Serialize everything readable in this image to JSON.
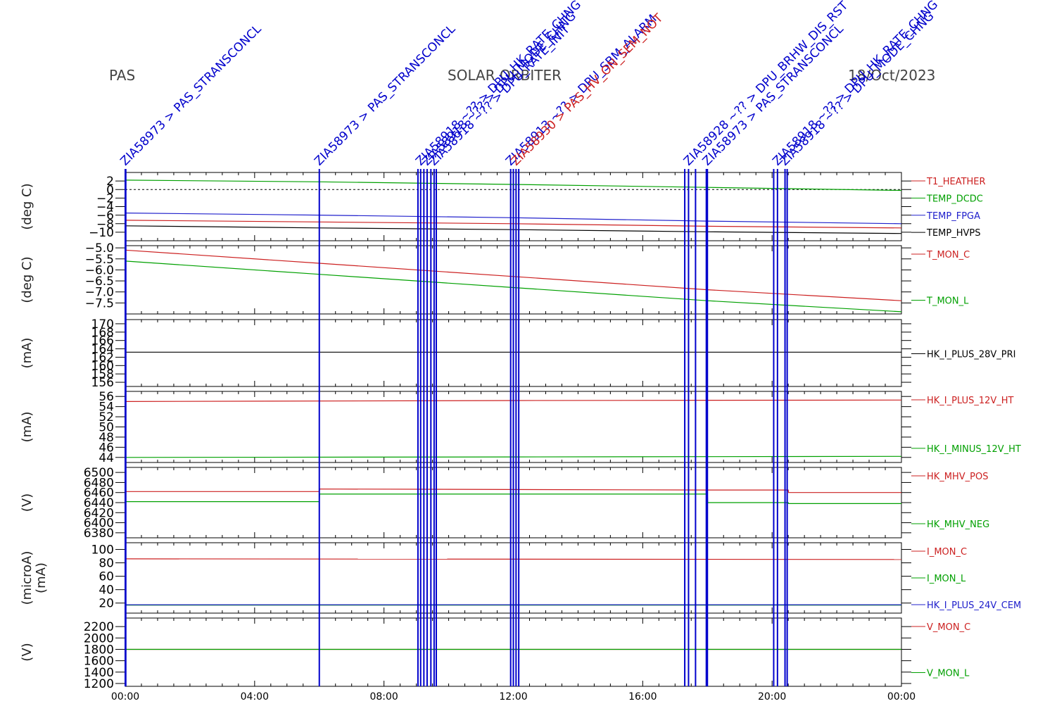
{
  "header": {
    "instrument": "PAS",
    "mission": "SOLAR ORBITER",
    "date": "18/Oct/2023"
  },
  "colors": {
    "red": "#cc2020",
    "green": "#00a000",
    "blue": "#2020cc",
    "black": "#000000",
    "event": "#0000cc"
  },
  "events": {
    "lines": [
      "00:00",
      "00:01",
      "06:00",
      "09:03",
      "09:08",
      "09:14",
      "09:20",
      "09:27",
      "09:33",
      "09:37",
      "11:55",
      "12:00",
      "12:05",
      "12:10",
      "17:18",
      "17:25",
      "17:38",
      "17:58",
      "18:00",
      "20:03",
      "20:10",
      "20:24",
      "20:28"
    ],
    "labels": [
      {
        "time": "00:00",
        "text": "ZIA58973 > PAS_STRANSCONCL",
        "color": "#0000cc"
      },
      {
        "time": "06:00",
        "text": "ZIA58973 > PAS_STRANSCONCL",
        "color": "#0000cc"
      },
      {
        "time": "09:08",
        "text": "ZIA58918 ~?? > DPU_HK_RATE_CHNG",
        "color": "#0000cc"
      },
      {
        "time": "09:20",
        "text": "ZIA58918 ~?? > DPU_MODE_CHNG",
        "color": "#0000cc"
      },
      {
        "time": "09:33",
        "text": "ZIA58918 ~?? > DPU_RATE_INIT",
        "color": "#0000cc"
      },
      {
        "time": "11:55",
        "text": "ZIA58913 ~?? > DPU_SBM_ALARM",
        "color": "#0000cc"
      },
      {
        "time": "12:05",
        "text": "ZIA58930 > PAS_HV_ON_SEM_NOT",
        "color": "#cc2020"
      },
      {
        "time": "17:25",
        "text": "ZIA58928 ~?? > DPU_BRHW_DIS_RST",
        "color": "#0000cc"
      },
      {
        "time": "18:00",
        "text": "ZIA58973 > PAS_STRANSCONCL",
        "color": "#0000cc"
      },
      {
        "time": "20:10",
        "text": "ZIA58918 ~?? > DPU_HK_RATE_CHNG",
        "color": "#0000cc"
      },
      {
        "time": "20:24",
        "text": "ZIA58918 ~?? > DPU_MODE_CHNG",
        "color": "#0000cc"
      }
    ]
  },
  "chart_data": {
    "type": "line",
    "x_axis": {
      "range": [
        "00:00",
        "24:00"
      ],
      "tick_labels": [
        "00:00",
        "04:00",
        "08:00",
        "12:00",
        "16:00",
        "20:00",
        "00:00"
      ]
    },
    "panels": [
      {
        "ylabel": "(deg C)",
        "ylim": [
          -12,
          4
        ],
        "ticks": [
          "2",
          "0",
          "-2",
          "-4",
          "-6",
          "-8",
          "-10"
        ],
        "zero_line": true,
        "series": [
          {
            "name": "T1_HEATHER",
            "color": "#cc2020",
            "x": [
              0,
              24
            ],
            "y": [
              null,
              null
            ]
          },
          {
            "name": "TEMP_DCDC",
            "color": "#00a000",
            "x": [
              0,
              6,
              12,
              18,
              24
            ],
            "y": [
              2.2,
              1.8,
              1.2,
              0.5,
              -0.2
            ]
          },
          {
            "name": "TEMP_FPGA",
            "color": "#2020cc",
            "x": [
              0,
              6,
              12,
              18,
              24
            ],
            "y": [
              -5.5,
              -6.0,
              -6.6,
              -7.4,
              -8.0
            ]
          },
          {
            "name": "TEMP_HVPS",
            "color": "#000000",
            "x": [
              0,
              6,
              12,
              18,
              24
            ],
            "y": [
              -8.5,
              -9.0,
              -9.4,
              -9.9,
              -10.3
            ]
          },
          {
            "name": "",
            "color": "#cc2020",
            "x": [
              0,
              6,
              12,
              18,
              24
            ],
            "y": [
              -7.2,
              -7.6,
              -8.0,
              -8.6,
              -9.0
            ]
          }
        ]
      },
      {
        "ylabel": "(deg C)",
        "ylim": [
          -8,
          -4.9
        ],
        "ticks": [
          "-5.0",
          "-5.5",
          "-6.0",
          "-6.5",
          "-7.0",
          "-7.5"
        ],
        "series": [
          {
            "name": "T_MON_C",
            "color": "#cc2020",
            "x": [
              0,
              6,
              12,
              18,
              24
            ],
            "y": [
              -5.1,
              -5.7,
              -6.3,
              -6.9,
              -7.4
            ]
          },
          {
            "name": "T_MON_L",
            "color": "#00a000",
            "x": [
              0,
              6,
              12,
              18,
              24
            ],
            "y": [
              -5.6,
              -6.2,
              -6.8,
              -7.4,
              -7.9
            ]
          }
        ]
      },
      {
        "ylabel": "(mA)",
        "ylim": [
          155,
          171
        ],
        "ticks": [
          "170",
          "168",
          "166",
          "164",
          "162",
          "160",
          "158",
          "156"
        ],
        "series": [
          {
            "name": "HK_I_PLUS_28V_PRI",
            "color": "#000000",
            "x": [
              0,
              12,
              24
            ],
            "y": [
              163.2,
              163.2,
              163.2
            ]
          }
        ]
      },
      {
        "ylabel": "(mA)",
        "ylim": [
          43,
          57
        ],
        "ticks": [
          "56",
          "54",
          "52",
          "50",
          "48",
          "46",
          "44"
        ],
        "series": [
          {
            "name": "HK_I_PLUS_12V_HT",
            "color": "#cc2020",
            "x": [
              0,
              12,
              24
            ],
            "y": [
              55.0,
              55.2,
              55.3
            ]
          },
          {
            "name": "HK_I_MINUS_12V_HT",
            "color": "#00a000",
            "x": [
              0,
              12,
              24
            ],
            "y": [
              44.0,
              44.1,
              44.2
            ]
          }
        ]
      },
      {
        "ylabel": "(V)",
        "ylim": [
          6370,
          6510
        ],
        "ticks": [
          "6500",
          "6480",
          "6460",
          "6440",
          "6420",
          "6400",
          "6380"
        ],
        "series": [
          {
            "name": "HK_MHV_POS",
            "color": "#cc2020",
            "x": [
              0,
              6,
              6.01,
              18,
              20.5,
              20.51,
              24
            ],
            "y": [
              6462,
              6462,
              6467,
              6465,
              6465,
              6460,
              6460
            ]
          },
          {
            "name": "HK_MHV_NEG",
            "color": "#00a000",
            "x": [
              0,
              6,
              6.01,
              18,
              18.01,
              20.5,
              20.51,
              24
            ],
            "y": [
              6442,
              6442,
              6457,
              6457,
              6440,
              6440,
              6438,
              6438
            ]
          }
        ]
      },
      {
        "ylabel": "(microA)\n(mA)",
        "ylim": [
          5,
          110
        ],
        "ticks": [
          "100",
          "80",
          "60",
          "40",
          "20"
        ],
        "series": [
          {
            "name": "I_MON_C",
            "color": "#cc2020",
            "x": [
              0,
              24
            ],
            "y": [
              86,
              85
            ]
          },
          {
            "name": "I_MON_L",
            "color": "#00a000",
            "x": [
              0,
              24
            ],
            "y": [
              17,
              17
            ]
          },
          {
            "name": "HK_I_PLUS_24V_CEM",
            "color": "#2020cc",
            "x": [
              0,
              24
            ],
            "y": [
              17.5,
              17.5
            ]
          }
        ]
      },
      {
        "ylabel": "(V)",
        "ylim": [
          1150,
          2350
        ],
        "ticks": [
          "2200",
          "2000",
          "1800",
          "1600",
          "1400",
          "1200"
        ],
        "series": [
          {
            "name": "V_MON_C",
            "color": "#cc2020",
            "x": [
              0,
              24
            ],
            "y": [
              1800,
              1800
            ]
          },
          {
            "name": "V_MON_L",
            "color": "#00a000",
            "x": [
              0,
              24
            ],
            "y": [
              1800,
              1800
            ]
          }
        ]
      }
    ]
  }
}
